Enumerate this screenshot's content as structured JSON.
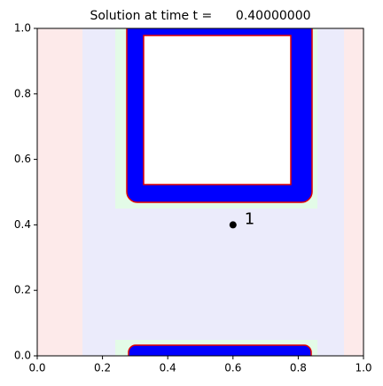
{
  "chart_data": {
    "type": "scatter",
    "title": "Solution at time t =      0.40000000",
    "x": [
      0.6
    ],
    "values": [
      0.4
    ],
    "labels": [
      "1"
    ],
    "color": "#000000",
    "xlim": [
      0,
      1
    ],
    "ylim": [
      0,
      1
    ],
    "xticks": [
      {
        "value": 0,
        "label": "0.0"
      },
      0.2,
      0.4,
      0.6,
      0.8,
      {
        "value": 1,
        "label": "1.0"
      }
    ],
    "yticks": [
      {
        "value": 0,
        "label": "0.0"
      },
      0.2,
      0.4,
      0.6,
      0.8,
      {
        "value": 1,
        "label": "1.0"
      }
    ]
  }
}
